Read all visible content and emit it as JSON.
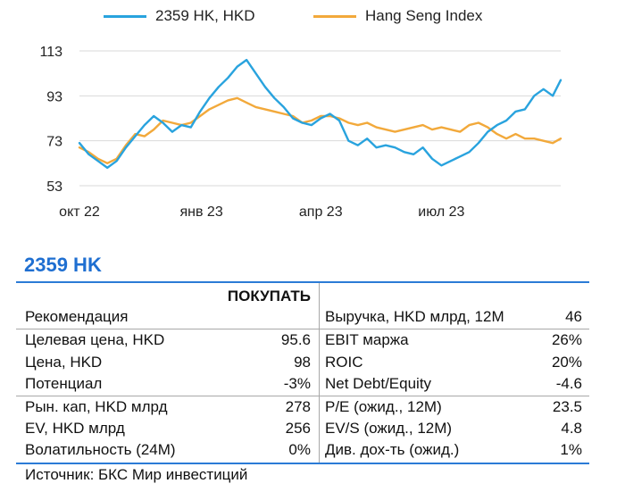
{
  "chart_data": {
    "type": "line",
    "title": "",
    "xlabel": "",
    "ylabel": "",
    "ylim": [
      53,
      113
    ],
    "yticks": [
      113,
      93,
      73,
      53
    ],
    "x_tick_labels": [
      "окт 22",
      "янв 23",
      "апр 23",
      "июл 23"
    ],
    "x_tick_dates": [
      "2022-10-01",
      "2023-01-01",
      "2023-04-01",
      "2023-07-01"
    ],
    "xlim": [
      "2022-10-01",
      "2023-09-29"
    ],
    "grid": "horizontal",
    "legend_position": "top",
    "series": [
      {
        "name": "2359 HK, HKD",
        "color": "#29a3de",
        "points": [
          [
            "2022-10-01",
            72
          ],
          [
            "2022-10-08",
            67
          ],
          [
            "2022-10-15",
            64
          ],
          [
            "2022-10-22",
            61
          ],
          [
            "2022-10-29",
            64
          ],
          [
            "2022-11-05",
            70
          ],
          [
            "2022-11-12",
            75
          ],
          [
            "2022-11-19",
            80
          ],
          [
            "2022-11-26",
            84
          ],
          [
            "2022-12-03",
            81
          ],
          [
            "2022-12-10",
            77
          ],
          [
            "2022-12-17",
            80
          ],
          [
            "2022-12-24",
            79
          ],
          [
            "2022-12-31",
            86
          ],
          [
            "2023-01-07",
            92
          ],
          [
            "2023-01-14",
            97
          ],
          [
            "2023-01-21",
            101
          ],
          [
            "2023-01-28",
            106
          ],
          [
            "2023-02-04",
            109
          ],
          [
            "2023-02-11",
            103
          ],
          [
            "2023-02-18",
            97
          ],
          [
            "2023-02-25",
            92
          ],
          [
            "2023-03-04",
            88
          ],
          [
            "2023-03-11",
            83
          ],
          [
            "2023-03-18",
            81
          ],
          [
            "2023-03-25",
            80
          ],
          [
            "2023-04-01",
            83
          ],
          [
            "2023-04-08",
            85
          ],
          [
            "2023-04-15",
            82
          ],
          [
            "2023-04-22",
            73
          ],
          [
            "2023-04-29",
            71
          ],
          [
            "2023-05-06",
            74
          ],
          [
            "2023-05-13",
            70
          ],
          [
            "2023-05-20",
            71
          ],
          [
            "2023-05-27",
            70
          ],
          [
            "2023-06-03",
            68
          ],
          [
            "2023-06-10",
            67
          ],
          [
            "2023-06-17",
            70
          ],
          [
            "2023-06-24",
            65
          ],
          [
            "2023-07-01",
            62
          ],
          [
            "2023-07-08",
            64
          ],
          [
            "2023-07-15",
            66
          ],
          [
            "2023-07-22",
            68
          ],
          [
            "2023-07-29",
            72
          ],
          [
            "2023-08-05",
            77
          ],
          [
            "2023-08-12",
            80
          ],
          [
            "2023-08-19",
            82
          ],
          [
            "2023-08-26",
            86
          ],
          [
            "2023-09-02",
            87
          ],
          [
            "2023-09-09",
            93
          ],
          [
            "2023-09-16",
            96
          ],
          [
            "2023-09-23",
            93
          ],
          [
            "2023-09-29",
            100
          ]
        ]
      },
      {
        "name": "Hang Seng Index",
        "color": "#f2a93b",
        "points": [
          [
            "2022-10-01",
            70
          ],
          [
            "2022-10-08",
            68
          ],
          [
            "2022-10-15",
            65
          ],
          [
            "2022-10-22",
            63
          ],
          [
            "2022-10-29",
            65
          ],
          [
            "2022-11-05",
            71
          ],
          [
            "2022-11-12",
            76
          ],
          [
            "2022-11-19",
            75
          ],
          [
            "2022-11-26",
            78
          ],
          [
            "2022-12-03",
            82
          ],
          [
            "2022-12-10",
            81
          ],
          [
            "2022-12-17",
            80
          ],
          [
            "2022-12-24",
            81
          ],
          [
            "2022-12-31",
            84
          ],
          [
            "2023-01-07",
            87
          ],
          [
            "2023-01-14",
            89
          ],
          [
            "2023-01-21",
            91
          ],
          [
            "2023-01-28",
            92
          ],
          [
            "2023-02-04",
            90
          ],
          [
            "2023-02-11",
            88
          ],
          [
            "2023-02-18",
            87
          ],
          [
            "2023-02-25",
            86
          ],
          [
            "2023-03-04",
            85
          ],
          [
            "2023-03-11",
            84
          ],
          [
            "2023-03-18",
            81
          ],
          [
            "2023-03-25",
            82
          ],
          [
            "2023-04-01",
            84
          ],
          [
            "2023-04-08",
            84
          ],
          [
            "2023-04-15",
            83
          ],
          [
            "2023-04-22",
            81
          ],
          [
            "2023-04-29",
            80
          ],
          [
            "2023-05-06",
            81
          ],
          [
            "2023-05-13",
            79
          ],
          [
            "2023-05-20",
            78
          ],
          [
            "2023-05-27",
            77
          ],
          [
            "2023-06-03",
            78
          ],
          [
            "2023-06-10",
            79
          ],
          [
            "2023-06-17",
            80
          ],
          [
            "2023-06-24",
            78
          ],
          [
            "2023-07-01",
            79
          ],
          [
            "2023-07-08",
            78
          ],
          [
            "2023-07-15",
            77
          ],
          [
            "2023-07-22",
            80
          ],
          [
            "2023-07-29",
            81
          ],
          [
            "2023-08-05",
            79
          ],
          [
            "2023-08-12",
            76
          ],
          [
            "2023-08-19",
            74
          ],
          [
            "2023-08-26",
            76
          ],
          [
            "2023-09-02",
            74
          ],
          [
            "2023-09-09",
            74
          ],
          [
            "2023-09-16",
            73
          ],
          [
            "2023-09-23",
            72
          ],
          [
            "2023-09-29",
            74
          ]
        ]
      }
    ]
  },
  "ticker": "2359 HK",
  "table": {
    "left": [
      {
        "label": "Рекомендация",
        "value": "ПОКУПАТЬ"
      },
      {
        "label": "Целевая цена, HKD",
        "value": "95.6"
      },
      {
        "label": "Цена, HKD",
        "value": "98"
      },
      {
        "label": "Потенциал",
        "value": "-3%"
      },
      {
        "label": "Рын. кап, HKD млрд",
        "value": "278"
      },
      {
        "label": "EV, HKD млрд",
        "value": "256"
      },
      {
        "label": "Волатильность (24M)",
        "value": "0%"
      }
    ],
    "right": [
      {
        "label": "Выручка, HKD млрд, 12M",
        "value": "46"
      },
      {
        "label": "EBIT маржа",
        "value": "26%"
      },
      {
        "label": "ROIC",
        "value": "20%"
      },
      {
        "label": "Net Debt/Equity",
        "value": "-4.6"
      },
      {
        "label": "P/E (ожид., 12M)",
        "value": "23.5"
      },
      {
        "label": "EV/S (ожид., 12M)",
        "value": "4.8"
      },
      {
        "label": "Див. дох-ть (ожид.)",
        "value": "1%"
      }
    ]
  },
  "source": "Источник: БКС Мир инвестиций"
}
